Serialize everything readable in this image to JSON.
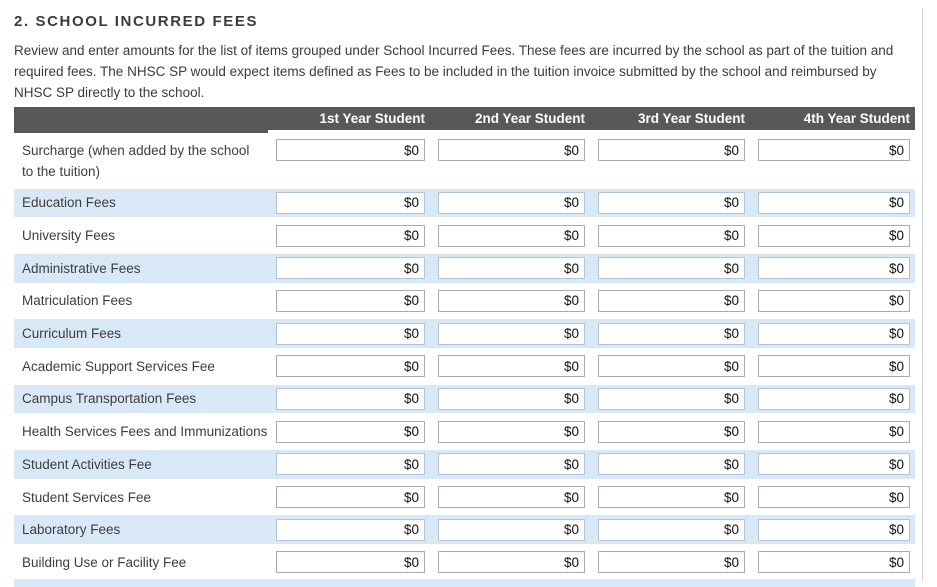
{
  "section": {
    "heading": "2. SCHOOL INCURRED FEES",
    "description": "Review and enter amounts for the list of items grouped under School Incurred Fees. These fees are incurred by the school as part of the tuition and required fees. The NHSC SP would expect items defined as Fees to be included in the tuition invoice submitted by the school and reimbursed by NHSC SP directly to the school."
  },
  "table": {
    "columns": [
      "1st Year Student",
      "2nd Year Student",
      "3rd Year Student",
      "4th Year Student"
    ],
    "rows": [
      {
        "label": "Surcharge (when added by the school to the tuition)",
        "values": [
          "$0",
          "$0",
          "$0",
          "$0"
        ]
      },
      {
        "label": "Education Fees",
        "values": [
          "$0",
          "$0",
          "$0",
          "$0"
        ]
      },
      {
        "label": "University Fees",
        "values": [
          "$0",
          "$0",
          "$0",
          "$0"
        ]
      },
      {
        "label": "Administrative Fees",
        "values": [
          "$0",
          "$0",
          "$0",
          "$0"
        ]
      },
      {
        "label": "Matriculation Fees",
        "values": [
          "$0",
          "$0",
          "$0",
          "$0"
        ]
      },
      {
        "label": "Curriculum Fees",
        "values": [
          "$0",
          "$0",
          "$0",
          "$0"
        ]
      },
      {
        "label": "Academic Support Services Fee",
        "values": [
          "$0",
          "$0",
          "$0",
          "$0"
        ]
      },
      {
        "label": "Campus Transportation Fees",
        "values": [
          "$0",
          "$0",
          "$0",
          "$0"
        ]
      },
      {
        "label": "Health Services Fees and Immunizations",
        "values": [
          "$0",
          "$0",
          "$0",
          "$0"
        ]
      },
      {
        "label": "Student Activities Fee",
        "values": [
          "$0",
          "$0",
          "$0",
          "$0"
        ]
      },
      {
        "label": "Student Services Fee",
        "values": [
          "$0",
          "$0",
          "$0",
          "$0"
        ]
      },
      {
        "label": "Laboratory Fees",
        "values": [
          "$0",
          "$0",
          "$0",
          "$0"
        ]
      },
      {
        "label": "Building Use or Facility Fee",
        "values": [
          "$0",
          "$0",
          "$0",
          "$0"
        ]
      }
    ]
  },
  "colors": {
    "header_bg": "#58585a",
    "stripe": "#d9e8f7",
    "input_border": "#ababab",
    "stripe_input_border": "#b3c2d6",
    "page_border": "#d2d2d2"
  }
}
